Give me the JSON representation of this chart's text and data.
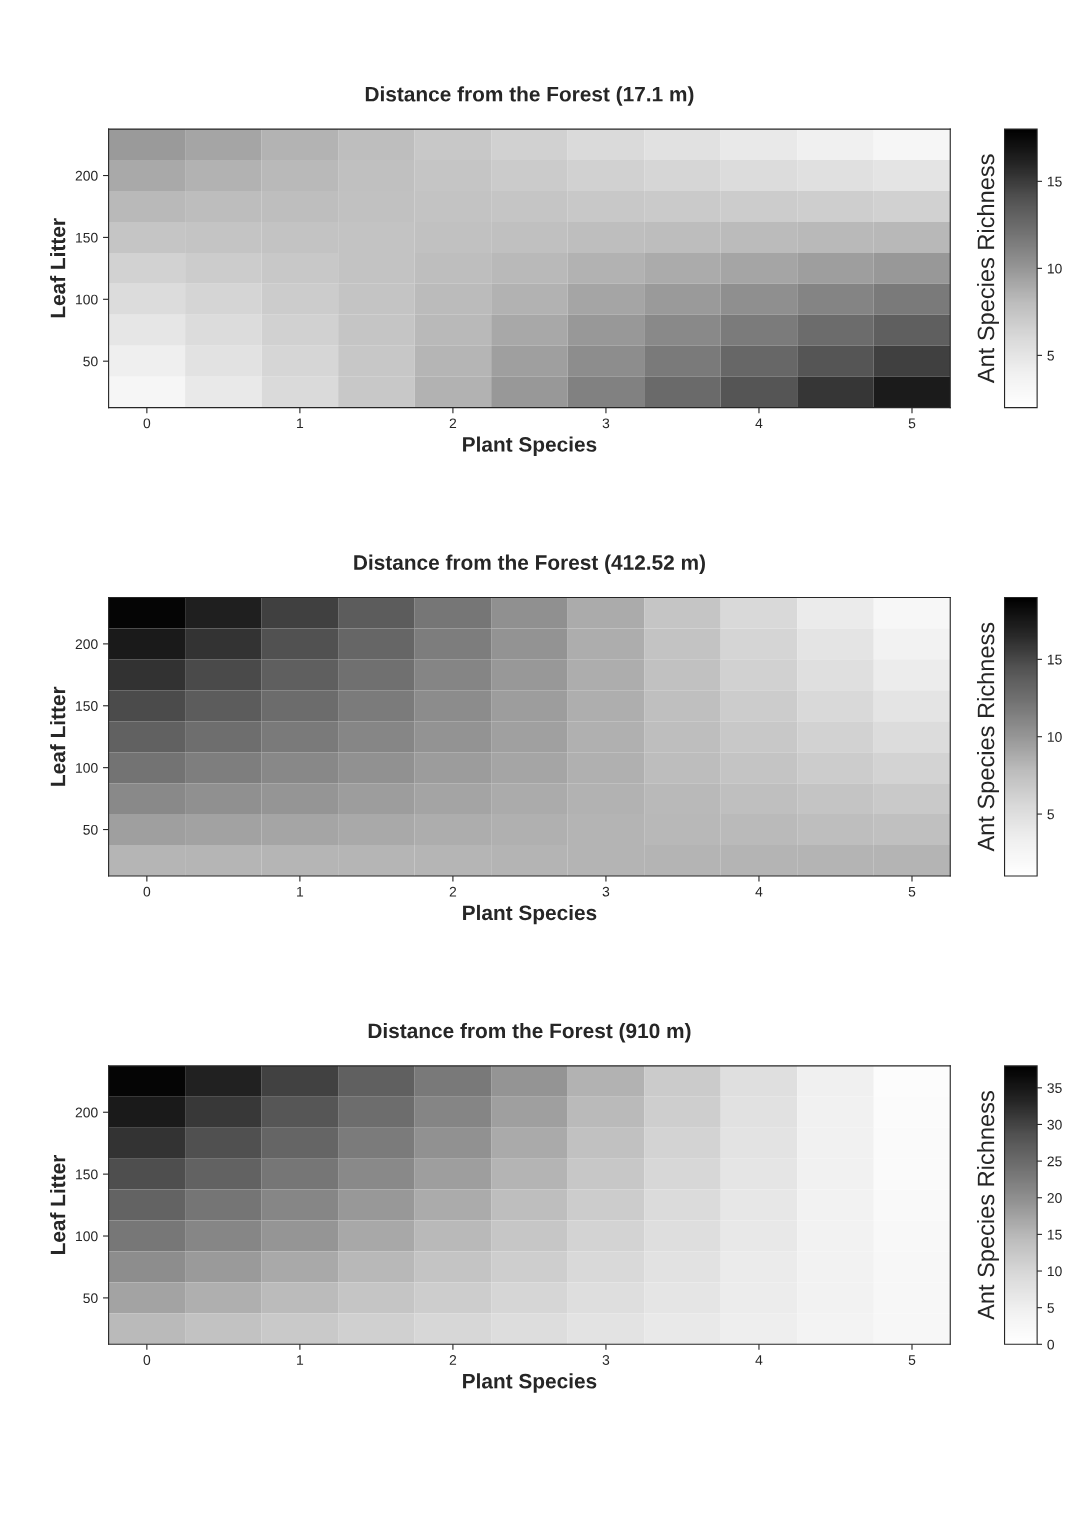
{
  "chart_data": [
    {
      "type": "heatmap",
      "title": "Distance from the Forest (17.1 m)",
      "xlabel": "Plant Species",
      "ylabel": "Leaf Litter",
      "clabel": "Ant Species Richness",
      "categories": [
        "0",
        null,
        "1",
        null,
        "2",
        null,
        "3",
        null,
        "4",
        null,
        "5"
      ],
      "y_categories": [
        null,
        "200",
        null,
        "150",
        null,
        "100",
        null,
        "50",
        null
      ],
      "clim": [
        2,
        18
      ],
      "cticks": [
        5,
        10,
        15
      ],
      "cells": [
        [
          9.8,
          9.2,
          8.5,
          7.9,
          7.2,
          6.6,
          5.9,
          5.3,
          4.6,
          4.0,
          3.3
        ],
        [
          9.0,
          8.6,
          8.2,
          7.8,
          7.4,
          7.0,
          6.6,
          6.2,
          5.8,
          5.4,
          5.0
        ],
        [
          8.2,
          8.0,
          7.9,
          7.7,
          7.6,
          7.4,
          7.2,
          7.1,
          6.9,
          6.8,
          6.6
        ],
        [
          7.4,
          7.5,
          7.6,
          7.6,
          7.7,
          7.8,
          7.9,
          8.0,
          8.1,
          8.2,
          8.3
        ],
        [
          6.5,
          6.9,
          7.2,
          7.6,
          7.9,
          8.2,
          8.6,
          8.9,
          9.2,
          9.6,
          9.9
        ],
        [
          5.7,
          6.3,
          6.9,
          7.5,
          8.1,
          8.6,
          9.2,
          9.8,
          10.4,
          11.0,
          11.6
        ],
        [
          4.9,
          5.7,
          6.6,
          7.4,
          8.2,
          9.1,
          9.9,
          10.7,
          11.5,
          12.4,
          13.2
        ],
        [
          4.1,
          5.2,
          6.2,
          7.3,
          8.4,
          9.5,
          10.5,
          11.6,
          12.7,
          13.8,
          14.8
        ],
        [
          3.3,
          4.6,
          5.9,
          7.2,
          8.6,
          9.9,
          11.2,
          12.5,
          13.8,
          15.2,
          16.5
        ]
      ]
    },
    {
      "type": "heatmap",
      "title": "Distance from the Forest (412.52 m)",
      "xlabel": "Plant Species",
      "ylabel": "Leaf Litter",
      "clabel": "Ant Species Richness",
      "categories": [
        "0",
        null,
        "1",
        null,
        "2",
        null,
        "3",
        null,
        "4",
        null,
        "5"
      ],
      "y_categories": [
        null,
        "200",
        null,
        "150",
        null,
        "100",
        null,
        "50",
        null
      ],
      "clim": [
        1,
        19
      ],
      "cticks": [
        5,
        10,
        15
      ],
      "cells": [
        [
          18.7,
          17.1,
          15.4,
          13.8,
          12.1,
          10.4,
          8.8,
          7.1,
          5.5,
          3.8,
          2.2
        ],
        [
          17.4,
          16.0,
          14.5,
          13.1,
          11.6,
          10.2,
          8.7,
          7.3,
          5.8,
          4.4,
          2.9
        ],
        [
          16.1,
          14.9,
          13.6,
          12.4,
          11.1,
          9.9,
          8.7,
          7.4,
          6.2,
          4.9,
          3.7
        ],
        [
          14.8,
          13.8,
          12.7,
          11.7,
          10.7,
          9.6,
          8.6,
          7.6,
          6.5,
          5.5,
          4.5
        ],
        [
          13.5,
          12.6,
          11.8,
          11.0,
          10.2,
          9.4,
          8.5,
          7.7,
          6.9,
          6.1,
          5.2
        ],
        [
          12.2,
          11.5,
          10.9,
          10.3,
          9.7,
          9.1,
          8.5,
          7.8,
          7.2,
          6.6,
          6.0
        ],
        [
          10.8,
          10.4,
          10.0,
          9.6,
          9.2,
          8.8,
          8.4,
          8.0,
          7.6,
          7.2,
          6.8
        ],
        [
          9.5,
          9.3,
          9.1,
          8.9,
          8.7,
          8.5,
          8.3,
          8.1,
          7.9,
          7.7,
          7.5
        ],
        [
          8.2,
          8.2,
          8.2,
          8.2,
          8.2,
          8.3,
          8.3,
          8.3,
          8.3,
          8.3,
          8.3
        ]
      ]
    },
    {
      "type": "heatmap",
      "title": "Distance from the Forest (910 m)",
      "xlabel": "Plant Species",
      "ylabel": "Leaf Litter",
      "clabel": "Ant Species Richness",
      "categories": [
        "0",
        null,
        "1",
        null,
        "2",
        null,
        "3",
        null,
        "4",
        null,
        "5"
      ],
      "y_categories": [
        null,
        "200",
        null,
        "150",
        null,
        "100",
        null,
        "50",
        null
      ],
      "clim": [
        0,
        38
      ],
      "cticks": [
        0,
        5,
        10,
        15,
        20,
        25,
        30,
        35
      ],
      "cells": [
        [
          37.4,
          33.8,
          30.2,
          26.5,
          22.9,
          19.2,
          15.6,
          12.0,
          8.3,
          4.7,
          1.1
        ],
        [
          34.6,
          31.2,
          27.9,
          24.6,
          21.3,
          17.9,
          14.6,
          11.3,
          7.9,
          4.6,
          1.3
        ],
        [
          31.7,
          28.7,
          25.7,
          22.7,
          19.6,
          16.6,
          13.6,
          10.6,
          7.5,
          4.5,
          1.5
        ],
        [
          28.9,
          26.2,
          23.4,
          20.7,
          18.0,
          15.3,
          12.6,
          9.9,
          7.1,
          4.4,
          1.7
        ],
        [
          26.0,
          23.6,
          21.2,
          18.8,
          16.4,
          14.0,
          11.6,
          9.1,
          6.7,
          4.3,
          1.9
        ],
        [
          23.2,
          21.1,
          19.0,
          16.9,
          14.8,
          12.7,
          10.6,
          8.5,
          6.4,
          4.2,
          2.1
        ],
        [
          20.3,
          18.5,
          16.7,
          14.9,
          13.1,
          11.3,
          9.5,
          7.7,
          5.9,
          4.1,
          2.4
        ],
        [
          17.5,
          16.0,
          14.5,
          13.0,
          11.5,
          10.0,
          8.5,
          7.0,
          5.6,
          4.1,
          2.6
        ],
        [
          14.6,
          13.4,
          12.3,
          11.1,
          9.9,
          8.7,
          7.5,
          6.3,
          5.2,
          4.0,
          2.8
        ]
      ]
    }
  ]
}
